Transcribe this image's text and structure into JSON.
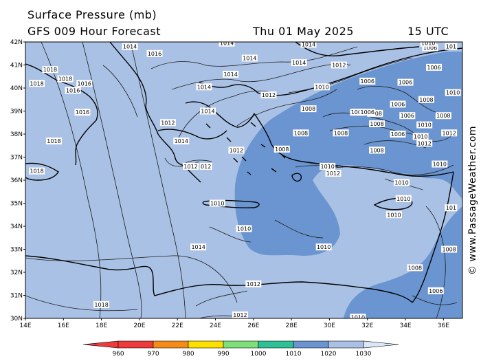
{
  "header": {
    "title": "Surface Pressure (mb)",
    "subtitle": "GFS 009 Hour Forecast",
    "date": "Thu 01 May 2025",
    "time": "15 UTC"
  },
  "credit": "© www.PassageWeather.com",
  "map": {
    "lon_labels": [
      "14E",
      "16E",
      "18E",
      "20E",
      "22E",
      "24E",
      "26E",
      "28E",
      "30E",
      "32E",
      "34E",
      "36E"
    ],
    "lat_labels": [
      "42N",
      "41N",
      "40N",
      "39N",
      "38N",
      "37N",
      "36N",
      "35N",
      "34N",
      "33N",
      "32N",
      "31N",
      "30N"
    ],
    "colors": {
      "sea_1020": "#a9c1e4",
      "low_1010": "#6b95d0",
      "coast": "#000000"
    },
    "isobar_labels": [
      {
        "text": "1014",
        "lon": 19.5,
        "lat": 41.8
      },
      {
        "text": "1016",
        "lon": 20.8,
        "lat": 41.5
      },
      {
        "text": "1014",
        "lon": 24.6,
        "lat": 41.95
      },
      {
        "text": "1014",
        "lon": 28.9,
        "lat": 41.9
      },
      {
        "text": "1014",
        "lon": 25.8,
        "lat": 41.3
      },
      {
        "text": "1014",
        "lon": 28.4,
        "lat": 41.1
      },
      {
        "text": "1012",
        "lon": 30.5,
        "lat": 41.0
      },
      {
        "text": "1018",
        "lon": 15.3,
        "lat": 40.8
      },
      {
        "text": "1018",
        "lon": 14.6,
        "lat": 40.2
      },
      {
        "text": "1018",
        "lon": 16.1,
        "lat": 40.4
      },
      {
        "text": "1016",
        "lon": 16.5,
        "lat": 39.9
      },
      {
        "text": "1016",
        "lon": 17.1,
        "lat": 40.2
      },
      {
        "text": "1014",
        "lon": 24.8,
        "lat": 40.6
      },
      {
        "text": "1014",
        "lon": 23.4,
        "lat": 40.05
      },
      {
        "text": "1012",
        "lon": 26.8,
        "lat": 39.7
      },
      {
        "text": "1010",
        "lon": 29.6,
        "lat": 40.05
      },
      {
        "text": "1006",
        "lon": 32.0,
        "lat": 40.3
      },
      {
        "text": "1006",
        "lon": 34.0,
        "lat": 40.25
      },
      {
        "text": "1014",
        "lon": 23.6,
        "lat": 39.0
      },
      {
        "text": "1016",
        "lon": 17.0,
        "lat": 38.95
      },
      {
        "text": "1008",
        "lon": 28.9,
        "lat": 39.1
      },
      {
        "text": "1008",
        "lon": 31.5,
        "lat": 38.95
      },
      {
        "text": "1008",
        "lon": 32.4,
        "lat": 38.9
      },
      {
        "text": "1006",
        "lon": 34.1,
        "lat": 38.8
      },
      {
        "text": "1012",
        "lon": 21.5,
        "lat": 38.5
      },
      {
        "text": "1008",
        "lon": 28.5,
        "lat": 38.05
      },
      {
        "text": "1008",
        "lon": 32.5,
        "lat": 38.45
      },
      {
        "text": "1006",
        "lon": 33.6,
        "lat": 38.0
      },
      {
        "text": "1018",
        "lon": 15.5,
        "lat": 37.7
      },
      {
        "text": "1014",
        "lon": 22.2,
        "lat": 37.7
      },
      {
        "text": "1012",
        "lon": 25.1,
        "lat": 37.3
      },
      {
        "text": "1008",
        "lon": 27.5,
        "lat": 37.35
      },
      {
        "text": "1008",
        "lon": 32.5,
        "lat": 37.3
      },
      {
        "text": "1012",
        "lon": 35.0,
        "lat": 37.6
      },
      {
        "text": "1010",
        "lon": 34.8,
        "lat": 37.9
      },
      {
        "text": "1012",
        "lon": 22.7,
        "lat": 36.6
      },
      {
        "text": "012",
        "lon": 23.5,
        "lat": 36.6
      },
      {
        "text": "1010",
        "lon": 29.9,
        "lat": 36.6
      },
      {
        "text": "1012",
        "lon": 30.2,
        "lat": 36.3
      },
      {
        "text": "1010",
        "lon": 35.8,
        "lat": 36.7
      },
      {
        "text": "1018",
        "lon": 14.6,
        "lat": 36.4
      },
      {
        "text": "1010",
        "lon": 33.8,
        "lat": 35.9
      },
      {
        "text": "1010",
        "lon": 33.9,
        "lat": 35.2
      },
      {
        "text": "1010",
        "lon": 33.4,
        "lat": 34.5
      },
      {
        "text": "1010",
        "lon": 24.1,
        "lat": 35.0
      },
      {
        "text": "1010",
        "lon": 25.5,
        "lat": 33.9
      },
      {
        "text": "1010",
        "lon": 29.7,
        "lat": 33.1
      },
      {
        "text": "1014",
        "lon": 23.1,
        "lat": 33.1
      },
      {
        "text": "1012",
        "lon": 26.0,
        "lat": 31.5
      },
      {
        "text": "1008",
        "lon": 34.5,
        "lat": 32.2
      },
      {
        "text": "1006",
        "lon": 35.6,
        "lat": 31.2
      },
      {
        "text": "1018",
        "lon": 18.0,
        "lat": 30.6
      },
      {
        "text": "1012",
        "lon": 25.3,
        "lat": 30.15
      },
      {
        "text": "1010",
        "lon": 31.5,
        "lat": 30.05
      },
      {
        "text": "1012",
        "lon": 36.3,
        "lat": 38.05
      },
      {
        "text": "1010",
        "lon": 36.5,
        "lat": 39.8
      },
      {
        "text": "1008",
        "lon": 36.0,
        "lat": 38.8
      },
      {
        "text": "1010",
        "lon": 35.0,
        "lat": 38.4
      },
      {
        "text": "1006",
        "lon": 33.6,
        "lat": 39.3
      },
      {
        "text": "1008",
        "lon": 35.1,
        "lat": 39.5
      },
      {
        "text": "1006",
        "lon": 35.5,
        "lat": 40.9
      },
      {
        "text": "1006",
        "lon": 35.3,
        "lat": 41.75
      },
      {
        "text": "1010",
        "lon": 35.2,
        "lat": 41.95
      },
      {
        "text": "101",
        "lon": 36.4,
        "lat": 41.8
      },
      {
        "text": "101",
        "lon": 36.4,
        "lat": 34.8
      },
      {
        "text": "1008",
        "lon": 36.3,
        "lat": 33.0
      },
      {
        "text": "1008",
        "lon": 30.6,
        "lat": 38.05
      },
      {
        "text": "1006",
        "lon": 32.0,
        "lat": 38.95
      }
    ]
  },
  "legend": {
    "ticks": [
      "960",
      "970",
      "980",
      "990",
      "1000",
      "1010",
      "1020",
      "1030"
    ],
    "colors": [
      "#ee3a3a",
      "#f58c1a",
      "#fde000",
      "#7de07a",
      "#2ec196",
      "#6b95d0",
      "#a9c1e4",
      "#dbe6f6"
    ]
  }
}
